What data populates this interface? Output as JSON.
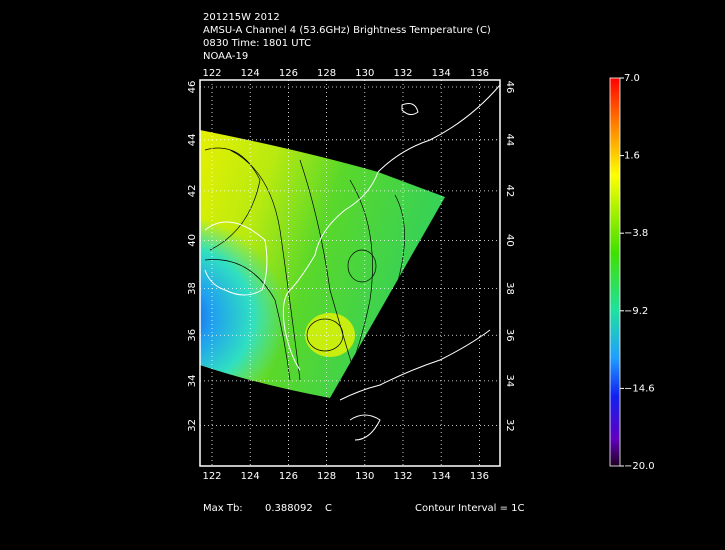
{
  "header": {
    "lines": [
      "201215W 2012",
      "AMSU-A Channel 4 (53.6GHz) Brightness Temperature (C)",
      "0830 Time: 1801 UTC",
      "NOAA-19"
    ]
  },
  "map": {
    "lon_ticks": [
      "122",
      "124",
      "126",
      "128",
      "130",
      "132",
      "134",
      "136"
    ],
    "lat_ticks": [
      "46",
      "44",
      "42",
      "40",
      "38",
      "36",
      "34",
      "32"
    ]
  },
  "colorbar": {
    "range": [
      -20,
      7
    ],
    "ticks": [
      {
        "value": 7,
        "label": "7.0"
      },
      {
        "value": 1.6,
        "label": "1.6"
      },
      {
        "value": -3.8,
        "label": "−3.8"
      },
      {
        "value": -9.2,
        "label": "−9.2"
      },
      {
        "value": -14.6,
        "label": "−14.6"
      },
      {
        "value": -20,
        "label": "−20.0"
      }
    ]
  },
  "footer": {
    "max_label": "Max Tb:",
    "max_value": "0.388092",
    "max_unit": "C",
    "contour": "Contour Interval = 1C"
  }
}
